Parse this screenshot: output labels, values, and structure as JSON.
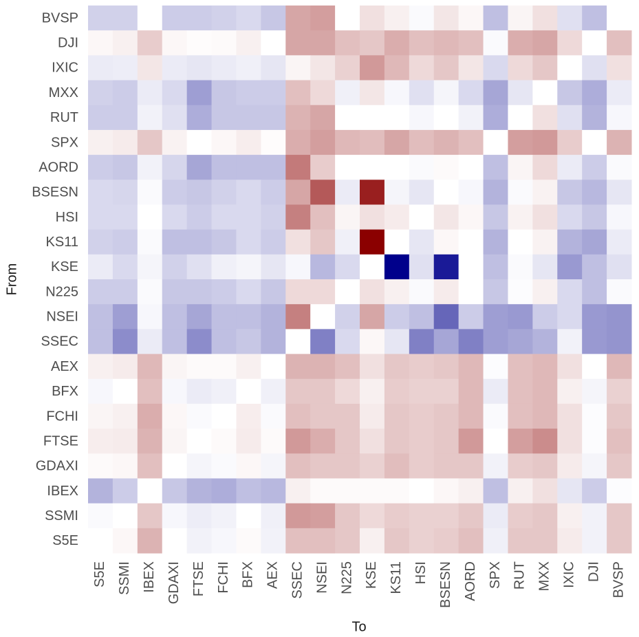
{
  "chart_data": {
    "type": "heatmap",
    "x_label": "To",
    "y_label": "From",
    "x_categories": [
      "S5E",
      "SSMI",
      "IBEX",
      "GDAXI",
      "FTSE",
      "FCHI",
      "BFX",
      "AEX",
      "SSEC",
      "NSEI",
      "N225",
      "KSE",
      "KS11",
      "HSI",
      "BSESN",
      "AORD",
      "SPX",
      "RUT",
      "MXX",
      "IXIC",
      "DJI",
      "BVSP"
    ],
    "y_categories": [
      "BVSP",
      "DJI",
      "IXIC",
      "MXX",
      "RUT",
      "SPX",
      "AORD",
      "BSESN",
      "HSI",
      "KS11",
      "KSE",
      "N225",
      "NSEI",
      "SSEC",
      "AEX",
      "BFX",
      "FCHI",
      "FTSE",
      "GDAXI",
      "IBEX",
      "SSMI",
      "S5E"
    ],
    "values": [
      [
        -0.18,
        -0.18,
        0,
        -0.2,
        -0.2,
        -0.18,
        -0.15,
        -0.22,
        0.35,
        0.38,
        0,
        0.12,
        0.06,
        -0.02,
        0.1,
        0.03,
        -0.25,
        0.04,
        0.12,
        -0.12,
        -0.25,
        0
      ],
      [
        0.03,
        0.06,
        0.2,
        0.03,
        0.01,
        0.02,
        0.06,
        0,
        0.35,
        0.35,
        0.25,
        0.22,
        0.32,
        0.25,
        0.28,
        0.25,
        -0.02,
        0.32,
        0.35,
        0.15,
        0,
        0.25
      ],
      [
        -0.08,
        -0.07,
        0.1,
        -0.08,
        -0.1,
        -0.08,
        -0.06,
        -0.1,
        0.04,
        0.1,
        0.18,
        0.4,
        0.28,
        0.15,
        0.22,
        0.1,
        -0.15,
        0.15,
        0.22,
        0,
        -0.12,
        0.12
      ],
      [
        -0.18,
        -0.2,
        -0.08,
        -0.15,
        -0.38,
        -0.22,
        -0.2,
        -0.2,
        0.25,
        0.15,
        -0.06,
        0.1,
        -0.03,
        -0.12,
        -0.04,
        -0.15,
        -0.35,
        -0.1,
        0,
        -0.22,
        -0.32,
        -0.08
      ],
      [
        -0.2,
        -0.2,
        -0.05,
        -0.12,
        -0.32,
        -0.22,
        -0.22,
        -0.22,
        0.3,
        0.35,
        0,
        0,
        0,
        -0.03,
        0,
        -0.05,
        -0.32,
        0,
        0.12,
        -0.12,
        -0.3,
        -0.03
      ],
      [
        0.06,
        0.08,
        0.22,
        0.05,
        0,
        0.03,
        0.07,
        0.01,
        0.32,
        0.38,
        0.28,
        0.26,
        0.35,
        0.26,
        0.3,
        0.25,
        0,
        0.38,
        0.4,
        0.2,
        0,
        0.3
      ],
      [
        -0.2,
        -0.22,
        -0.05,
        -0.16,
        -0.35,
        -0.25,
        -0.25,
        -0.25,
        0.52,
        0.2,
        0,
        0,
        0,
        -0.02,
        0.02,
        0,
        -0.25,
        0.04,
        0.15,
        -0.08,
        -0.2,
        -0.02
      ],
      [
        -0.15,
        -0.16,
        -0.02,
        -0.2,
        -0.22,
        -0.18,
        -0.15,
        -0.2,
        0.35,
        0.65,
        -0.08,
        0.88,
        -0.04,
        -0.1,
        0,
        -0.03,
        -0.3,
        -0.02,
        0.05,
        -0.22,
        -0.28,
        -0.1
      ],
      [
        -0.15,
        -0.15,
        0,
        -0.15,
        -0.2,
        -0.15,
        -0.15,
        -0.18,
        0.5,
        0.25,
        0.04,
        0.12,
        0.08,
        0,
        0.1,
        0.03,
        -0.22,
        0.05,
        0.12,
        -0.15,
        -0.22,
        -0.03
      ],
      [
        -0.18,
        -0.2,
        -0.02,
        -0.25,
        -0.25,
        -0.22,
        -0.15,
        -0.2,
        0.12,
        0.22,
        -0.06,
        1,
        0,
        -0.1,
        0.03,
        0,
        -0.3,
        0,
        0.05,
        -0.3,
        -0.35,
        -0.08
      ],
      [
        -0.08,
        -0.15,
        -0.04,
        -0.18,
        -0.12,
        -0.06,
        -0.04,
        -0.1,
        -0.03,
        -0.28,
        -0.15,
        0,
        -1,
        -0.12,
        -0.9,
        0,
        -0.25,
        -0.02,
        -0.1,
        -0.4,
        -0.25,
        -0.12
      ],
      [
        -0.2,
        -0.2,
        -0.02,
        -0.22,
        -0.22,
        -0.2,
        -0.15,
        -0.22,
        0.15,
        0.15,
        0,
        0.12,
        0.06,
        -0.02,
        0.08,
        0,
        -0.22,
        -0.01,
        0.06,
        -0.15,
        -0.25,
        -0.02
      ],
      [
        -0.25,
        -0.38,
        -0.03,
        -0.25,
        -0.35,
        -0.25,
        -0.25,
        -0.3,
        0.5,
        0,
        -0.18,
        0.35,
        -0.2,
        -0.25,
        -0.6,
        -0.2,
        -0.38,
        -0.4,
        -0.2,
        -0.15,
        -0.4,
        -0.42
      ],
      [
        -0.25,
        -0.45,
        -0.08,
        -0.25,
        -0.45,
        -0.25,
        -0.22,
        -0.3,
        0,
        -0.5,
        -0.15,
        0.03,
        -0.1,
        -0.5,
        -0.35,
        -0.5,
        -0.38,
        -0.35,
        -0.3,
        -0.05,
        -0.4,
        -0.42
      ],
      [
        0.06,
        0.08,
        0.28,
        0.04,
        0.02,
        0.02,
        0.06,
        0,
        0.3,
        0.3,
        0.25,
        0.12,
        0.22,
        0.2,
        0.22,
        0.28,
        -0.01,
        0.25,
        0.28,
        0.12,
        0,
        0.28
      ],
      [
        -0.03,
        0,
        0.25,
        -0.03,
        -0.08,
        -0.06,
        0,
        -0.06,
        0.22,
        0.22,
        0.15,
        0.06,
        0.2,
        0.18,
        0.18,
        0.28,
        -0.08,
        0.25,
        0.28,
        0.06,
        -0.04,
        0.18
      ],
      [
        0.04,
        0.06,
        0.32,
        0.03,
        -0.02,
        0,
        0.07,
        -0.02,
        0.25,
        0.22,
        0.22,
        0.08,
        0.22,
        0.2,
        0.22,
        0.28,
        -0.02,
        0.25,
        0.28,
        0.12,
        -0.01,
        0.22
      ],
      [
        0.07,
        0.08,
        0.3,
        0.04,
        0,
        0.02,
        0.08,
        0.02,
        0.4,
        0.32,
        0.22,
        0.12,
        0.22,
        0.2,
        0.22,
        0.4,
        0,
        0.38,
        0.45,
        0.12,
        -0.01,
        0.25
      ],
      [
        0.02,
        0.03,
        0.25,
        0,
        -0.04,
        -0.02,
        0.03,
        -0.04,
        0.25,
        0.22,
        0.22,
        0.18,
        0.26,
        0.2,
        0.22,
        0.22,
        -0.05,
        0.2,
        0.22,
        0.08,
        -0.04,
        0.22
      ],
      [
        -0.3,
        -0.2,
        0,
        -0.22,
        -0.3,
        -0.32,
        -0.25,
        -0.28,
        0.06,
        0.02,
        0.02,
        0.02,
        0.02,
        0,
        0.03,
        0.06,
        -0.25,
        0.06,
        0.12,
        -0.1,
        -0.2,
        -0.01
      ],
      [
        -0.02,
        0,
        0.22,
        -0.03,
        -0.07,
        -0.05,
        0,
        -0.06,
        0.4,
        0.38,
        0.22,
        0.15,
        0.2,
        0.18,
        0.18,
        0.22,
        -0.08,
        0.2,
        0.22,
        0.06,
        -0.05,
        0.22
      ],
      [
        0,
        0.03,
        0.3,
        0,
        -0.05,
        -0.03,
        0.02,
        -0.05,
        0.25,
        0.25,
        0.22,
        0.06,
        0.22,
        0.18,
        0.2,
        0.25,
        -0.06,
        0.22,
        0.22,
        0.08,
        -0.05,
        0.22
      ]
    ],
    "zlim": [
      -1,
      1
    ],
    "colors": {
      "low": "#00008b",
      "mid": "#ffffff",
      "high": "#8b0000"
    }
  }
}
